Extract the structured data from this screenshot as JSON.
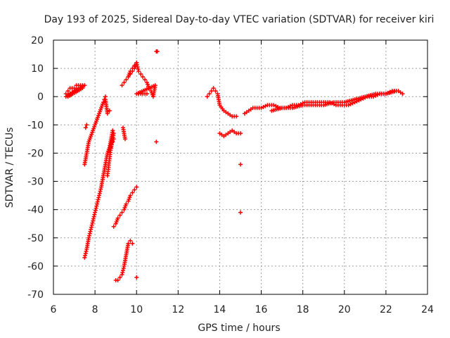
{
  "chart_data": {
    "type": "scatter",
    "title": "Day 193 of 2025, Sidereal Day-to-day VTEC variation (SDTVAR) for receiver kiri",
    "xlabel": "GPS time / hours",
    "ylabel": "SDTVAR / TECUs",
    "xlim": [
      6,
      24
    ],
    "ylim": [
      -70,
      20
    ],
    "x_ticks": [
      6,
      8,
      10,
      12,
      14,
      16,
      18,
      20,
      22,
      24
    ],
    "y_ticks": [
      -70,
      -60,
      -50,
      -40,
      -30,
      -20,
      -10,
      0,
      10,
      20
    ],
    "grid": true,
    "marker": "plus",
    "marker_color": "#ff0000",
    "series": [
      {
        "name": "SDTVAR",
        "x": [
          6.6,
          6.7,
          6.8,
          6.9,
          7.0,
          7.1,
          7.2,
          7.3,
          7.4,
          7.5,
          6.6,
          6.8,
          7.0,
          7.2,
          7.4,
          6.7,
          6.9,
          7.1,
          7.3,
          7.5,
          7.6,
          7.7,
          7.8,
          7.9,
          8.0,
          8.1,
          8.2,
          8.3,
          8.4,
          8.5,
          8.6,
          8.7,
          7.5,
          7.6,
          7.65,
          7.7,
          7.8,
          7.9,
          8.0,
          8.1,
          8.2,
          8.3,
          8.4,
          8.5,
          8.6,
          8.7,
          8.75,
          8.8,
          8.85,
          7.55,
          7.6,
          8.45,
          8.5,
          8.6,
          8.65,
          8.7,
          8.75,
          8.8,
          8.85,
          8.9,
          8.7,
          8.75,
          8.8,
          8.85,
          8.9,
          8.9,
          9.0,
          9.1,
          9.2,
          9.3,
          9.4,
          9.5,
          9.6,
          9.7,
          9.8,
          9.9,
          10.0,
          9.35,
          9.4,
          9.45,
          9.0,
          9.1,
          9.2,
          9.3,
          9.4,
          9.5,
          9.6,
          9.7,
          9.8,
          9.6,
          9.7,
          9.8,
          9.9,
          10.0,
          9.3,
          9.4,
          9.5,
          9.6,
          9.7,
          9.8,
          9.9,
          10.0,
          10.1,
          10.2,
          10.3,
          10.4,
          10.5,
          10.6,
          10.7,
          10.8,
          10.9,
          10.0,
          10.5,
          10.0,
          10.95,
          10.95,
          11.0,
          13.4,
          13.5,
          13.6,
          13.7,
          13.8,
          13.9,
          14.0,
          14.2,
          14.4,
          14.6,
          14.8,
          14.0,
          14.2,
          14.4,
          14.6,
          14.8,
          15.0,
          15.0,
          15.0,
          15.2,
          15.4,
          15.6,
          15.8,
          16.0,
          16.3,
          16.6,
          16.9,
          17.2,
          17.5,
          17.8,
          18.1,
          18.4,
          18.7,
          19.0,
          19.3,
          19.6,
          19.9,
          20.2,
          20.5,
          20.8,
          21.1,
          21.4,
          21.7,
          22.0,
          22.3,
          22.6,
          22.8,
          16.5,
          17.0,
          17.5,
          18.0,
          18.5,
          19.0,
          19.5,
          20.0,
          20.5,
          21.0,
          21.5,
          22.0,
          22.5
        ],
        "y": [
          1,
          2,
          3,
          3,
          3,
          4,
          4,
          4,
          4,
          4,
          0,
          1,
          2,
          3,
          3,
          0,
          1,
          2,
          3,
          -24,
          -20,
          -16,
          -14,
          -12,
          -10,
          -8,
          -6,
          -4,
          -2,
          -1,
          -6,
          -5,
          -57,
          -54,
          -52,
          -50,
          -47,
          -44,
          -41,
          -38,
          -35,
          -32,
          -28,
          -24,
          -20,
          -18,
          -16,
          -14,
          -12,
          -11,
          -10,
          -1,
          0,
          -28,
          -25,
          -22,
          -19,
          -17,
          -15,
          -13,
          -19,
          -18,
          -17,
          -16,
          -15,
          -46,
          -45,
          -43,
          -42,
          -41,
          -40,
          -38,
          -37,
          -35,
          -34,
          -33,
          -32,
          -11,
          -13,
          -15,
          -65,
          -65,
          -64,
          -63,
          -60,
          -56,
          -52,
          -51,
          -52,
          7,
          9,
          10,
          11,
          12,
          4,
          5,
          6,
          7,
          8,
          9,
          10,
          12,
          9,
          8,
          7,
          6,
          5,
          3,
          2,
          0,
          4,
          1,
          1,
          -64,
          -16,
          16,
          16,
          0,
          1,
          2,
          3,
          2,
          1,
          -3,
          -5,
          -6,
          -7,
          -7,
          -13,
          -14,
          -13,
          -12,
          -13,
          -13,
          -24,
          -41,
          -6,
          -5,
          -4,
          -4,
          -4,
          -3,
          -3,
          -4,
          -4,
          -3,
          -3,
          -2,
          -2,
          -2,
          -2,
          -2,
          -3,
          -3,
          -3,
          -2,
          -1,
          0,
          0,
          1,
          1,
          2,
          2,
          1,
          -5,
          -4,
          -4,
          -3,
          -3,
          -3,
          -2,
          -2,
          -1,
          0,
          1,
          1,
          2
        ]
      }
    ]
  }
}
